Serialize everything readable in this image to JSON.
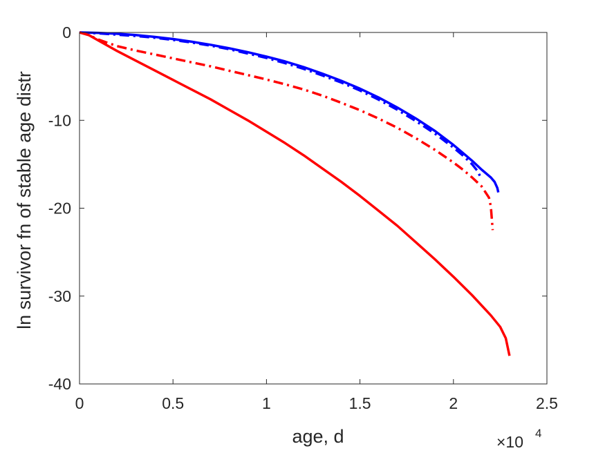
{
  "chart_data": {
    "type": "line",
    "title": "",
    "xlabel": "age, d",
    "ylabel": "ln survivor fn of stable age distr",
    "xlim": [
      0,
      25000
    ],
    "ylim": [
      -40,
      0
    ],
    "x_tick_labels": [
      "0",
      "0.5",
      "1",
      "1.5",
      "2",
      "2.5"
    ],
    "x_tick_values": [
      0,
      5000,
      10000,
      15000,
      20000,
      25000
    ],
    "x_exponent_base": "×10",
    "x_exponent_power": "4",
    "y_tick_labels": [
      "0",
      "-10",
      "-20",
      "-30",
      "-40"
    ],
    "y_tick_values": [
      0,
      -10,
      -20,
      -30,
      -40
    ],
    "grid": false,
    "legend": "none",
    "series": [
      {
        "color": "#0000ff",
        "style": "solid",
        "x": [
          0,
          1000,
          2000,
          3000,
          4000,
          5000,
          6000,
          7000,
          8000,
          9000,
          10000,
          11000,
          12000,
          13000,
          14000,
          15000,
          16000,
          17000,
          18000,
          19000,
          20000,
          20500,
          21000,
          21500,
          22000,
          22200,
          22350,
          22400
        ],
        "y": [
          0,
          -0.05,
          -0.15,
          -0.3,
          -0.5,
          -0.75,
          -1.05,
          -1.4,
          -1.8,
          -2.25,
          -2.75,
          -3.3,
          -3.95,
          -4.7,
          -5.5,
          -6.4,
          -7.4,
          -8.55,
          -9.8,
          -11.2,
          -12.8,
          -13.7,
          -14.6,
          -15.6,
          -16.5,
          -17.0,
          -17.7,
          -18.2
        ]
      },
      {
        "color": "#0000ff",
        "style": "dashdot",
        "x": [
          0,
          1000,
          2000,
          3000,
          4000,
          5000,
          6000,
          7000,
          8000,
          9000,
          10000,
          11000,
          12000,
          13000,
          14000,
          15000,
          16000,
          17000,
          18000,
          19000,
          20000,
          20500,
          21000,
          21300,
          21500
        ],
        "y": [
          0,
          -0.1,
          -0.25,
          -0.4,
          -0.6,
          -0.85,
          -1.15,
          -1.5,
          -1.9,
          -2.4,
          -2.9,
          -3.5,
          -4.15,
          -4.9,
          -5.7,
          -6.6,
          -7.65,
          -8.8,
          -10.1,
          -11.5,
          -13.1,
          -14.0,
          -15.0,
          -15.8,
          -16.7
        ]
      },
      {
        "color": "#ff0000",
        "style": "solid",
        "x": [
          0,
          500,
          1000,
          2000,
          3000,
          4000,
          5000,
          6000,
          7000,
          8000,
          9000,
          10000,
          11000,
          12000,
          13000,
          14000,
          15000,
          16000,
          17000,
          18000,
          19000,
          20000,
          21000,
          22000,
          22500,
          22800,
          23000
        ],
        "y": [
          0,
          -0.3,
          -0.9,
          -2.1,
          -3.2,
          -4.3,
          -5.4,
          -6.5,
          -7.6,
          -8.8,
          -10.0,
          -11.3,
          -12.6,
          -14.0,
          -15.5,
          -17.0,
          -18.6,
          -20.3,
          -22.0,
          -23.9,
          -25.8,
          -27.8,
          -29.9,
          -32.2,
          -33.5,
          -34.8,
          -36.8
        ]
      },
      {
        "color": "#ff0000",
        "style": "dashdot",
        "x": [
          0,
          500,
          1000,
          2000,
          3000,
          4000,
          5000,
          6000,
          7000,
          8000,
          9000,
          10000,
          11000,
          12000,
          13000,
          14000,
          15000,
          16000,
          17000,
          18000,
          19000,
          20000,
          20500,
          21000,
          21500,
          21900,
          22000,
          22100
        ],
        "y": [
          0,
          -0.3,
          -0.8,
          -1.55,
          -2.05,
          -2.5,
          -2.95,
          -3.4,
          -3.85,
          -4.35,
          -4.85,
          -5.35,
          -5.9,
          -6.5,
          -7.2,
          -8.0,
          -8.85,
          -9.8,
          -10.85,
          -12.05,
          -13.35,
          -14.8,
          -15.6,
          -16.5,
          -17.5,
          -18.8,
          -19.8,
          -22.5
        ]
      }
    ]
  }
}
